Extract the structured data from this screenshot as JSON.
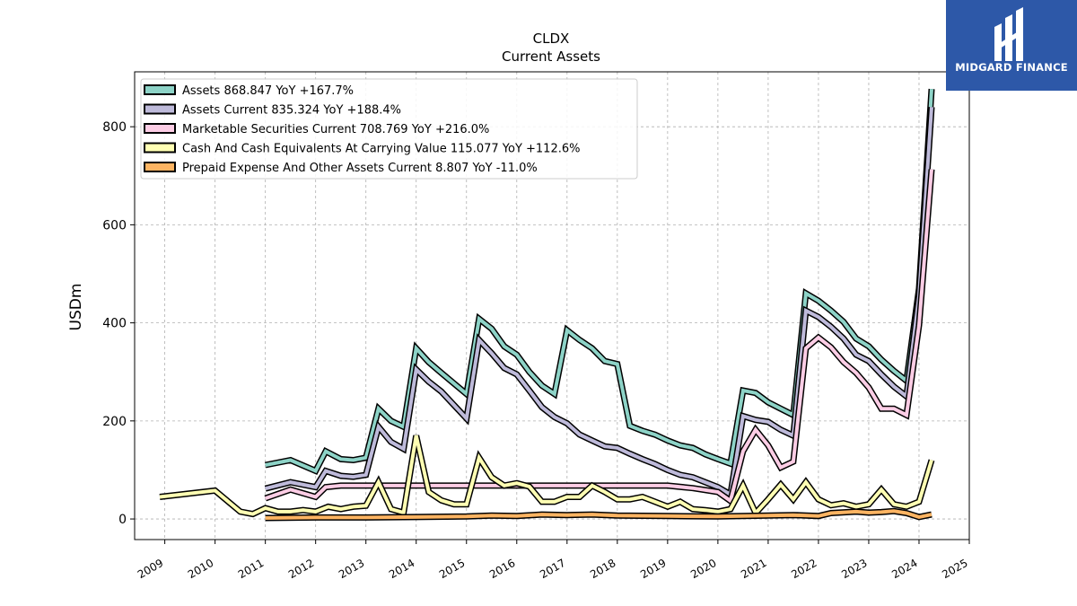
{
  "brand": {
    "name": "MIDGARD FINANCE"
  },
  "chart_data": {
    "type": "line",
    "title": "CLDX",
    "subtitle": "Current  Assets",
    "ylabel": "USDm",
    "xlabel": "",
    "xlim": [
      2008.4,
      2025.0
    ],
    "ylim": [
      -42,
      912
    ],
    "yticks": [
      0,
      200,
      400,
      600,
      800
    ],
    "xticks": [
      "2009",
      "2010",
      "2011",
      "2012",
      "2013",
      "2014",
      "2015",
      "2016",
      "2017",
      "2018",
      "2019",
      "2020",
      "2021",
      "2022",
      "2023",
      "2024",
      "2025"
    ],
    "grid": true,
    "legend_position": "top-left",
    "series": [
      {
        "name": "Assets",
        "legend": "Assets  868.847 YoY +167.7%",
        "color": "#8dd3c7",
        "points": [
          [
            2011.0,
            110
          ],
          [
            2011.5,
            120
          ],
          [
            2012.0,
            98
          ],
          [
            2012.2,
            138
          ],
          [
            2012.5,
            122
          ],
          [
            2012.75,
            120
          ],
          [
            2013.0,
            125
          ],
          [
            2013.25,
            225
          ],
          [
            2013.5,
            200
          ],
          [
            2013.75,
            188
          ],
          [
            2014.0,
            348
          ],
          [
            2014.25,
            320
          ],
          [
            2014.5,
            298
          ],
          [
            2015.0,
            255
          ],
          [
            2015.25,
            408
          ],
          [
            2015.5,
            388
          ],
          [
            2015.75,
            352
          ],
          [
            2016.0,
            335
          ],
          [
            2016.25,
            300
          ],
          [
            2016.5,
            272
          ],
          [
            2016.75,
            255
          ],
          [
            2017.0,
            385
          ],
          [
            2017.25,
            365
          ],
          [
            2017.5,
            348
          ],
          [
            2017.75,
            322
          ],
          [
            2018.0,
            316
          ],
          [
            2018.25,
            190
          ],
          [
            2018.5,
            180
          ],
          [
            2018.75,
            172
          ],
          [
            2019.0,
            160
          ],
          [
            2019.25,
            150
          ],
          [
            2019.5,
            145
          ],
          [
            2019.75,
            132
          ],
          [
            2020.0,
            122
          ],
          [
            2020.25,
            113
          ],
          [
            2020.5,
            262
          ],
          [
            2020.75,
            257
          ],
          [
            2021.0,
            238
          ],
          [
            2021.25,
            225
          ],
          [
            2021.5,
            212
          ],
          [
            2021.75,
            460
          ],
          [
            2022.0,
            445
          ],
          [
            2022.25,
            425
          ],
          [
            2022.5,
            402
          ],
          [
            2022.75,
            368
          ],
          [
            2023.0,
            352
          ],
          [
            2023.25,
            325
          ],
          [
            2023.5,
            302
          ],
          [
            2023.75,
            282
          ],
          [
            2024.0,
            470
          ],
          [
            2024.25,
            877
          ]
        ]
      },
      {
        "name": "Assets Current",
        "legend": "Assets Current  835.324 YoY +188.4%",
        "color": "#bebada",
        "points": [
          [
            2011.0,
            62
          ],
          [
            2011.5,
            75
          ],
          [
            2012.0,
            65
          ],
          [
            2012.2,
            98
          ],
          [
            2012.5,
            88
          ],
          [
            2012.75,
            86
          ],
          [
            2013.0,
            90
          ],
          [
            2013.25,
            188
          ],
          [
            2013.5,
            157
          ],
          [
            2013.75,
            143
          ],
          [
            2014.0,
            305
          ],
          [
            2014.25,
            280
          ],
          [
            2014.5,
            260
          ],
          [
            2015.0,
            205
          ],
          [
            2015.25,
            365
          ],
          [
            2015.5,
            338
          ],
          [
            2015.75,
            308
          ],
          [
            2016.0,
            295
          ],
          [
            2016.25,
            262
          ],
          [
            2016.5,
            228
          ],
          [
            2016.75,
            208
          ],
          [
            2017.0,
            195
          ],
          [
            2017.25,
            172
          ],
          [
            2017.5,
            160
          ],
          [
            2017.75,
            148
          ],
          [
            2018.0,
            145
          ],
          [
            2018.25,
            133
          ],
          [
            2018.5,
            122
          ],
          [
            2018.75,
            112
          ],
          [
            2019.0,
            100
          ],
          [
            2019.25,
            90
          ],
          [
            2019.5,
            85
          ],
          [
            2019.75,
            75
          ],
          [
            2020.0,
            65
          ],
          [
            2020.25,
            50
          ],
          [
            2020.5,
            210
          ],
          [
            2020.75,
            202
          ],
          [
            2021.0,
            198
          ],
          [
            2021.25,
            182
          ],
          [
            2021.5,
            170
          ],
          [
            2021.75,
            425
          ],
          [
            2022.0,
            412
          ],
          [
            2022.25,
            392
          ],
          [
            2022.5,
            368
          ],
          [
            2022.75,
            335
          ],
          [
            2023.0,
            322
          ],
          [
            2023.25,
            295
          ],
          [
            2023.5,
            270
          ],
          [
            2023.75,
            250
          ],
          [
            2024.0,
            455
          ],
          [
            2024.25,
            840
          ]
        ]
      },
      {
        "name": "Marketable Securities Current",
        "legend": "Marketable Securities Current  708.769 YoY +216.0%",
        "color": "#fccde5",
        "points": [
          [
            2011.0,
            42
          ],
          [
            2011.5,
            60
          ],
          [
            2012.0,
            45
          ],
          [
            2012.2,
            65
          ],
          [
            2012.5,
            68
          ],
          [
            2013.0,
            68
          ],
          [
            2014.0,
            68
          ],
          [
            2015.0,
            68
          ],
          [
            2016.0,
            68
          ],
          [
            2017.0,
            68
          ],
          [
            2018.0,
            68
          ],
          [
            2019.0,
            68
          ],
          [
            2019.5,
            63
          ],
          [
            2020.0,
            55
          ],
          [
            2020.25,
            37
          ],
          [
            2020.5,
            138
          ],
          [
            2020.75,
            182
          ],
          [
            2021.0,
            150
          ],
          [
            2021.25,
            105
          ],
          [
            2021.5,
            117
          ],
          [
            2021.75,
            348
          ],
          [
            2022.0,
            370
          ],
          [
            2022.25,
            350
          ],
          [
            2022.5,
            320
          ],
          [
            2022.75,
            298
          ],
          [
            2023.0,
            268
          ],
          [
            2023.25,
            225
          ],
          [
            2023.5,
            225
          ],
          [
            2023.75,
            212
          ],
          [
            2024.0,
            395
          ],
          [
            2024.25,
            713
          ]
        ]
      },
      {
        "name": "Cash And Cash Equivalents At Carrying Value",
        "legend": "Cash And Cash Equivalents At Carrying Value  115.077 YoY +112.6%",
        "color": "#ffffb3",
        "points": [
          [
            2008.9,
            45
          ],
          [
            2010.0,
            58
          ],
          [
            2010.5,
            15
          ],
          [
            2010.75,
            10
          ],
          [
            2011.0,
            22
          ],
          [
            2011.25,
            15
          ],
          [
            2011.5,
            15
          ],
          [
            2011.75,
            18
          ],
          [
            2012.0,
            15
          ],
          [
            2012.25,
            25
          ],
          [
            2012.5,
            20
          ],
          [
            2012.75,
            25
          ],
          [
            2013.0,
            27
          ],
          [
            2013.25,
            75
          ],
          [
            2013.5,
            20
          ],
          [
            2013.75,
            13
          ],
          [
            2014.0,
            170
          ],
          [
            2014.25,
            55
          ],
          [
            2014.5,
            38
          ],
          [
            2014.75,
            30
          ],
          [
            2015.0,
            30
          ],
          [
            2015.25,
            125
          ],
          [
            2015.5,
            85
          ],
          [
            2015.75,
            68
          ],
          [
            2016.0,
            73
          ],
          [
            2016.25,
            66
          ],
          [
            2016.5,
            35
          ],
          [
            2016.75,
            35
          ],
          [
            2017.0,
            45
          ],
          [
            2017.25,
            45
          ],
          [
            2017.5,
            68
          ],
          [
            2017.75,
            55
          ],
          [
            2018.0,
            40
          ],
          [
            2018.25,
            40
          ],
          [
            2018.5,
            45
          ],
          [
            2018.75,
            35
          ],
          [
            2019.0,
            25
          ],
          [
            2019.25,
            35
          ],
          [
            2019.5,
            20
          ],
          [
            2019.75,
            18
          ],
          [
            2020.0,
            15
          ],
          [
            2020.25,
            20
          ],
          [
            2020.5,
            68
          ],
          [
            2020.75,
            12
          ],
          [
            2021.0,
            40
          ],
          [
            2021.25,
            70
          ],
          [
            2021.5,
            40
          ],
          [
            2021.75,
            75
          ],
          [
            2022.0,
            40
          ],
          [
            2022.25,
            28
          ],
          [
            2022.5,
            32
          ],
          [
            2022.75,
            25
          ],
          [
            2023.0,
            30
          ],
          [
            2023.25,
            60
          ],
          [
            2023.5,
            30
          ],
          [
            2023.75,
            25
          ],
          [
            2024.0,
            35
          ],
          [
            2024.25,
            120
          ]
        ]
      },
      {
        "name": "Prepaid Expense And Other Assets Current",
        "legend": "Prepaid Expense And Other Assets Current  8.807 YoY -11.0%",
        "color": "#fdb462",
        "points": [
          [
            2011.0,
            2
          ],
          [
            2012.0,
            3
          ],
          [
            2013.0,
            3
          ],
          [
            2014.0,
            4
          ],
          [
            2015.0,
            5
          ],
          [
            2015.5,
            7
          ],
          [
            2016.0,
            6
          ],
          [
            2016.5,
            9
          ],
          [
            2017.0,
            8
          ],
          [
            2017.5,
            9
          ],
          [
            2018.0,
            7
          ],
          [
            2019.0,
            6
          ],
          [
            2020.0,
            5
          ],
          [
            2020.5,
            6
          ],
          [
            2021.0,
            7
          ],
          [
            2021.5,
            8
          ],
          [
            2022.0,
            6
          ],
          [
            2022.25,
            12
          ],
          [
            2022.75,
            15
          ],
          [
            2023.0,
            13
          ],
          [
            2023.25,
            14
          ],
          [
            2023.5,
            16
          ],
          [
            2023.75,
            12
          ],
          [
            2024.0,
            4
          ],
          [
            2024.25,
            9
          ]
        ]
      }
    ]
  }
}
